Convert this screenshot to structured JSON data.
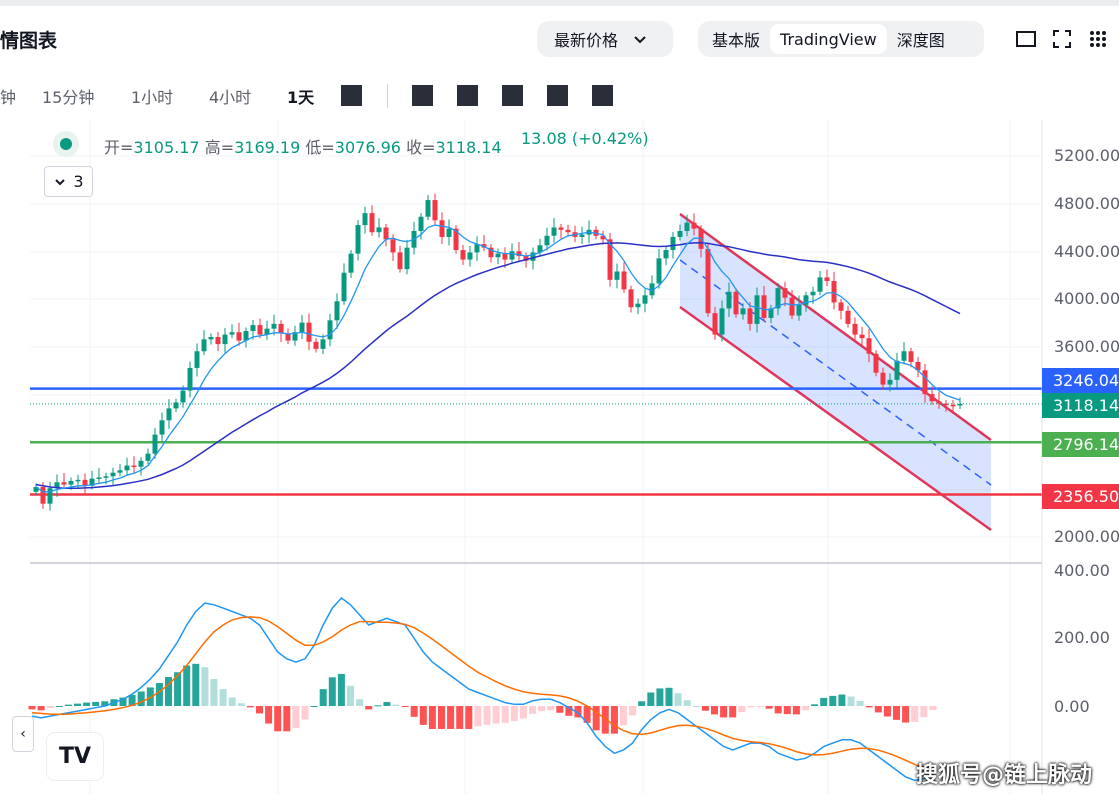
{
  "header": {
    "title": "情图表",
    "price_type": "最新价格",
    "views": [
      "基本版",
      "TradingView",
      "深度图"
    ],
    "active_view": "TradingView"
  },
  "timeframes": [
    "钟",
    "15分钟",
    "1小时",
    "4小时",
    "1天"
  ],
  "active_timeframe": "1天",
  "legend": {
    "open_label": "开=",
    "open": "3105.17",
    "high_label": "高=",
    "high": "3169.19",
    "low_label": "低=",
    "low": "3076.96",
    "close_label": "收=",
    "close": "3118.14",
    "change": "13.08 (+0.42%)",
    "indicator_count": "3"
  },
  "watermark": "搜狐号@链上脉动",
  "colors": {
    "up": "#089981",
    "down": "#f23645",
    "ma_fast": "#2196f3",
    "ma_slow": "#2a2fc7",
    "channel": "#e0365a",
    "channel_fill": "#2962ff",
    "line_blue": "#2962ff",
    "line_green": "#4caf50",
    "line_red": "#f23645",
    "macd": "#2196f3",
    "signal": "#ff6d00"
  },
  "chart_data": {
    "type": "candlestick",
    "price_axis": {
      "ticks": [
        "5200.00",
        "4800.00",
        "4400.00",
        "4000.00",
        "3600.00",
        "2000.00"
      ],
      "range": [
        1980,
        5300
      ]
    },
    "price_labels": [
      {
        "value": "3246.04",
        "color": "#2962ff"
      },
      {
        "value": "3118.14",
        "color": "#089981"
      },
      {
        "value": "2796.14",
        "color": "#4caf50"
      },
      {
        "value": "2356.50",
        "color": "#f23645"
      }
    ],
    "horizontal_lines": [
      3246.04,
      2796.14,
      2356.5
    ],
    "last_price": 3118.14,
    "closes": [
      2420,
      2280,
      2410,
      2460,
      2440,
      2470,
      2480,
      2430,
      2490,
      2500,
      2510,
      2540,
      2560,
      2600,
      2590,
      2640,
      2700,
      2860,
      2980,
      3080,
      3130,
      3230,
      3420,
      3560,
      3660,
      3680,
      3620,
      3700,
      3720,
      3650,
      3730,
      3780,
      3700,
      3750,
      3790,
      3710,
      3650,
      3720,
      3800,
      3640,
      3580,
      3660,
      3820,
      3980,
      4220,
      4380,
      4620,
      4720,
      4560,
      4600,
      4500,
      4390,
      4250,
      4430,
      4570,
      4690,
      4830,
      4660,
      4520,
      4590,
      4410,
      4330,
      4390,
      4460,
      4430,
      4350,
      4380,
      4330,
      4400,
      4360,
      4320,
      4390,
      4450,
      4530,
      4600,
      4580,
      4560,
      4520,
      4540,
      4580,
      4530,
      4500,
      4160,
      4230,
      4080,
      3930,
      3960,
      4030,
      4130,
      4340,
      4410,
      4520,
      4570,
      4640,
      4590,
      4420,
      3880,
      3700,
      3920,
      4060,
      3870,
      3920,
      3790,
      4030,
      3840,
      3920,
      4090,
      4010,
      3860,
      3950,
      4030,
      4060,
      4180,
      4150,
      3970,
      3900,
      3790,
      3700,
      3670,
      3540,
      3380,
      3280,
      3320,
      3480,
      3560,
      3470,
      3400,
      3200,
      3140,
      3120,
      3110,
      3105,
      3118
    ],
    "ma_fast": [
      2420,
      2380,
      2380,
      2400,
      2410,
      2420,
      2430,
      2430,
      2440,
      2450,
      2460,
      2480,
      2495,
      2520,
      2535,
      2560,
      2600,
      2680,
      2760,
      2850,
      2930,
      3010,
      3110,
      3210,
      3320,
      3410,
      3480,
      3540,
      3590,
      3620,
      3650,
      3680,
      3690,
      3700,
      3715,
      3715,
      3705,
      3710,
      3720,
      3705,
      3690,
      3680,
      3700,
      3760,
      3860,
      3980,
      4110,
      4250,
      4350,
      4440,
      4500,
      4510,
      4490,
      4480,
      4500,
      4540,
      4600,
      4620,
      4610,
      4600,
      4570,
      4520,
      4480,
      4460,
      4440,
      4410,
      4390,
      4380,
      4380,
      4370,
      4360,
      4370,
      4390,
      4420,
      4460,
      4500,
      4530,
      4540,
      4550,
      4560,
      4550,
      4540,
      4460,
      4400,
      4320,
      4220,
      4140,
      4090,
      4070,
      4110,
      4180,
      4280,
      4370,
      4460,
      4510,
      4510,
      4420,
      4310,
      4230,
      4170,
      4080,
      4010,
      3940,
      3930,
      3910,
      3910,
      3940,
      3960,
      3950,
      3950,
      3970,
      3980,
      4010,
      4050,
      4050,
      4020,
      3970,
      3900,
      3830,
      3760,
      3670,
      3580,
      3510,
      3470,
      3460,
      3440,
      3400,
      3340,
      3280,
      3230,
      3190,
      3170,
      3150
    ],
    "ma_slow": [
      2440,
      2430,
      2420,
      2415,
      2410,
      2410,
      2410,
      2412,
      2415,
      2420,
      2425,
      2432,
      2440,
      2450,
      2460,
      2472,
      2485,
      2505,
      2525,
      2550,
      2575,
      2605,
      2640,
      2680,
      2720,
      2760,
      2800,
      2840,
      2880,
      2915,
      2950,
      2985,
      3020,
      3050,
      3085,
      3115,
      3145,
      3175,
      3210,
      3240,
      3270,
      3300,
      3335,
      3375,
      3420,
      3470,
      3525,
      3580,
      3630,
      3680,
      3730,
      3775,
      3815,
      3855,
      3900,
      3945,
      3990,
      4030,
      4065,
      4100,
      4130,
      4155,
      4180,
      4205,
      4225,
      4245,
      4265,
      4280,
      4300,
      4315,
      4330,
      4345,
      4360,
      4375,
      4390,
      4405,
      4420,
      4430,
      4440,
      4450,
      4458,
      4466,
      4468,
      4470,
      4468,
      4462,
      4455,
      4448,
      4442,
      4440,
      4442,
      4448,
      4455,
      4465,
      4470,
      4472,
      4466,
      4455,
      4445,
      4438,
      4425,
      4412,
      4398,
      4388,
      4376,
      4366,
      4360,
      4352,
      4340,
      4330,
      4322,
      4316,
      4312,
      4306,
      4296,
      4284,
      4270,
      4254,
      4236,
      4216,
      4192,
      4166,
      4142,
      4120,
      4100,
      4078,
      4054,
      4026,
      3996,
      3966,
      3936,
      3906,
      3876
    ],
    "channel_upper": {
      "from": [
        4720,
        0
      ],
      "to": [
        2796,
        1
      ]
    },
    "macd": {
      "axis_ticks": [
        "400.00",
        "200.00",
        "0.00"
      ],
      "range": [
        -150,
        410
      ],
      "macd_line": [
        -30,
        -35,
        -30,
        -25,
        -20,
        -15,
        -10,
        -5,
        0,
        10,
        20,
        35,
        55,
        80,
        110,
        150,
        190,
        240,
        280,
        305,
        300,
        290,
        280,
        270,
        260,
        240,
        200,
        160,
        140,
        130,
        140,
        180,
        240,
        290,
        320,
        300,
        270,
        240,
        250,
        260,
        250,
        240,
        200,
        160,
        130,
        110,
        90,
        70,
        50,
        40,
        30,
        20,
        10,
        5,
        5,
        15,
        20,
        20,
        10,
        -5,
        -20,
        -50,
        -90,
        -120,
        -140,
        -130,
        -110,
        -70,
        -40,
        -20,
        -10,
        -20,
        -40,
        -60,
        -80,
        -100,
        -120,
        -130,
        -120,
        -110,
        -110,
        -120,
        -140,
        -150,
        -160,
        -155,
        -140,
        -120,
        -110,
        -100,
        -100,
        -110,
        -130,
        -150,
        -170,
        -190,
        -210,
        -220,
        -215,
        -200
      ],
      "signal_line": [
        -20,
        -22,
        -24,
        -25,
        -24,
        -22,
        -20,
        -17,
        -14,
        -10,
        -5,
        2,
        12,
        25,
        42,
        64,
        90,
        120,
        155,
        190,
        220,
        240,
        255,
        262,
        264,
        262,
        252,
        235,
        215,
        195,
        180,
        180,
        190,
        205,
        225,
        240,
        250,
        250,
        248,
        248,
        246,
        242,
        232,
        216,
        198,
        178,
        158,
        138,
        118,
        100,
        86,
        72,
        60,
        50,
        42,
        38,
        35,
        33,
        30,
        24,
        14,
        0,
        -18,
        -38,
        -58,
        -73,
        -82,
        -84,
        -80,
        -72,
        -64,
        -58,
        -57,
        -60,
        -66,
        -75,
        -86,
        -96,
        -102,
        -106,
        -108,
        -112,
        -118,
        -126,
        -135,
        -142,
        -145,
        -144,
        -140,
        -134,
        -128,
        -125,
        -126,
        -131,
        -139,
        -149,
        -161,
        -173,
        -182,
        -188
      ]
    }
  }
}
